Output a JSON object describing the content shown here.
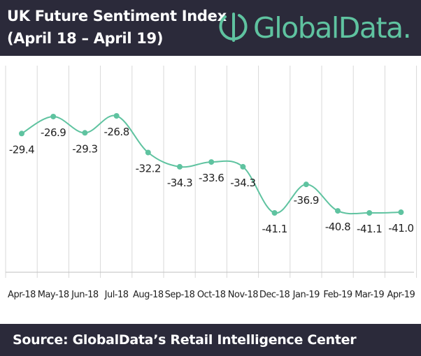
{
  "header": {
    "title": "UK Future Sentiment Index",
    "subtitle": "(April 18 – April 19)",
    "logo_text": "GlobalData."
  },
  "footer": {
    "source": "Source:  GlobalData’s Retail Intelligence Center"
  },
  "colors": {
    "header_bg": "#2b2a3a",
    "line": "#5fc3a0",
    "grid": "#d9d9d9",
    "logo": "#5fc3a0"
  },
  "chart_data": {
    "type": "line",
    "categories": [
      "Apr-18",
      "May-18",
      "Jun-18",
      "Jul-18",
      "Aug-18",
      "Sep-18",
      "Oct-18",
      "Nov-18",
      "Dec-18",
      "Jan-19",
      "Feb-19",
      "Mar-19",
      "Apr-19"
    ],
    "values": [
      -29.4,
      -26.9,
      -29.3,
      -26.8,
      -32.2,
      -34.3,
      -33.6,
      -34.3,
      -41.1,
      -36.9,
      -40.8,
      -41.1,
      -41.0
    ],
    "data_labels": [
      "-29.4",
      "-26.9",
      "-29.3",
      "-26.8",
      "-32.2",
      "-34.3",
      "-33.6",
      "-34.3",
      "-41.1",
      "-36.9",
      "-40.8",
      "-41.1",
      "-41.0"
    ],
    "grid": "vertical",
    "smooth": true,
    "yaxis_visible": false
  }
}
